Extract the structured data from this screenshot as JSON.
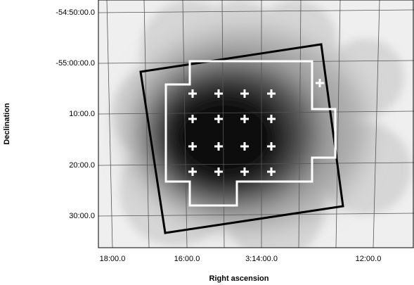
{
  "axes": {
    "x_label": "Right ascension",
    "y_label": "Declination",
    "x_ticks": [
      "18:00.0",
      "16:00.0",
      "3:14:00.0",
      "12:00.0"
    ],
    "y_ticks": [
      "-54:50:00.0",
      "-55:00:00.0",
      "10:00.0",
      "20:00.0",
      "30:00.0"
    ]
  }
}
